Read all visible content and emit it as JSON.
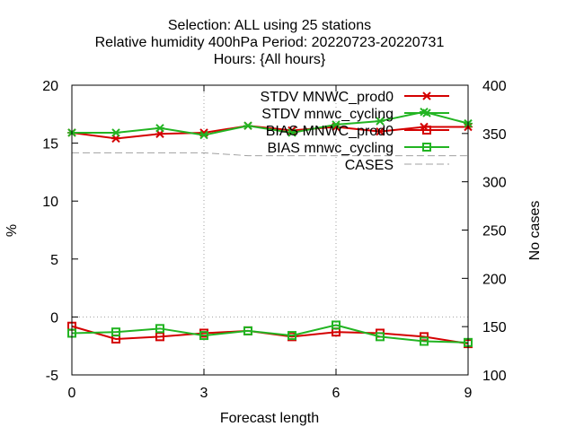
{
  "chart_data": {
    "type": "line",
    "title_lines": [
      "Selection: ALL using    25 stations",
      "Relative humidity 400hPa   Period: 20220723-20220731",
      "Hours: {All hours}"
    ],
    "xlabel": "Forecast length",
    "ylabel": "%",
    "y2label": "No cases",
    "xlim": [
      0,
      9
    ],
    "ylim": [
      -5,
      20
    ],
    "y2lim": [
      100,
      400
    ],
    "x_ticks": [
      0,
      3,
      6,
      9
    ],
    "y_ticks": [
      -5,
      0,
      5,
      10,
      15,
      20
    ],
    "y2_ticks": [
      100,
      150,
      200,
      250,
      300,
      350,
      400
    ],
    "grid": "dotted at x ticks 3 and 6 and y tick 0",
    "legend_position": "top-right",
    "x": [
      0,
      1,
      2,
      3,
      4,
      5,
      6,
      7,
      8,
      9
    ],
    "series": [
      {
        "name": "STDV MNWC_prod0",
        "color": "#d40000",
        "marker": "cross",
        "axis": "left",
        "values": [
          15.9,
          15.4,
          15.8,
          15.9,
          16.5,
          16.1,
          16.4,
          16.0,
          16.4,
          16.4
        ]
      },
      {
        "name": "STDV mnwc_cycling",
        "color": "#22b422",
        "marker": "cross",
        "axis": "left",
        "values": [
          15.9,
          15.9,
          16.3,
          15.7,
          16.5,
          15.9,
          16.6,
          16.9,
          17.7,
          16.7
        ]
      },
      {
        "name": "BIAS MNWC_prod0",
        "color": "#d40000",
        "marker": "square",
        "axis": "left",
        "values": [
          -0.8,
          -1.9,
          -1.7,
          -1.4,
          -1.2,
          -1.7,
          -1.3,
          -1.4,
          -1.7,
          -2.3
        ]
      },
      {
        "name": "BIAS mnwc_cycling",
        "color": "#22b422",
        "marker": "square",
        "axis": "left",
        "values": [
          -1.4,
          -1.3,
          -1.0,
          -1.6,
          -1.2,
          -1.6,
          -0.7,
          -1.7,
          -2.1,
          -2.2
        ]
      },
      {
        "name": "CASES",
        "color": "#a0a0a0",
        "marker": "none",
        "dashed": true,
        "axis": "right",
        "values": [
          330,
          330,
          330,
          330,
          327,
          327,
          327,
          327,
          327,
          327
        ]
      }
    ]
  }
}
